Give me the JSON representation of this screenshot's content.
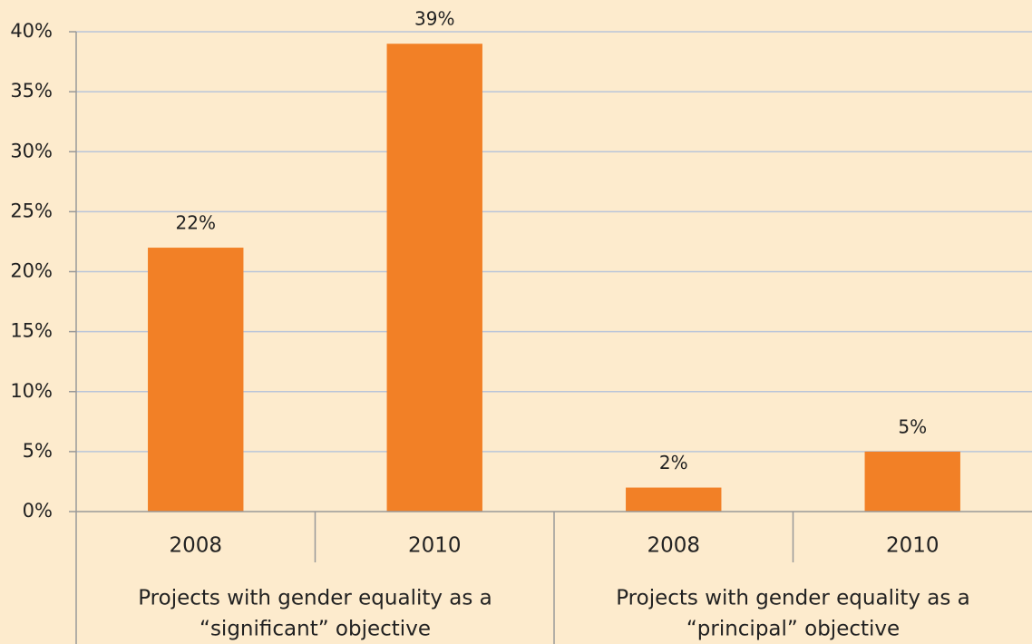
{
  "chart_data": {
    "type": "bar",
    "categories": [
      "2008",
      "2010",
      "2008",
      "2010"
    ],
    "groups": [
      {
        "label": [
          "Projects with gender equality as a",
          "“significant” objective"
        ]
      },
      {
        "label": [
          "Projects with gender equality as a",
          "“principal” objective"
        ]
      }
    ],
    "values": [
      22,
      39,
      2,
      5
    ],
    "value_labels": [
      "22%",
      "39%",
      "2%",
      "5%"
    ],
    "color": "#f28026",
    "ylim": [
      0,
      40
    ],
    "yticks": [
      {
        "value": 0,
        "label": "0%"
      },
      {
        "value": 5,
        "label": "5%"
      },
      {
        "value": 10,
        "label": "10%"
      },
      {
        "value": 15,
        "label": "15%"
      },
      {
        "value": 20,
        "label": "20%"
      },
      {
        "value": 25,
        "label": "25%"
      },
      {
        "value": 30,
        "label": "30%"
      },
      {
        "value": 35,
        "label": "35%"
      },
      {
        "value": 40,
        "label": "40%"
      }
    ],
    "grid": true
  }
}
